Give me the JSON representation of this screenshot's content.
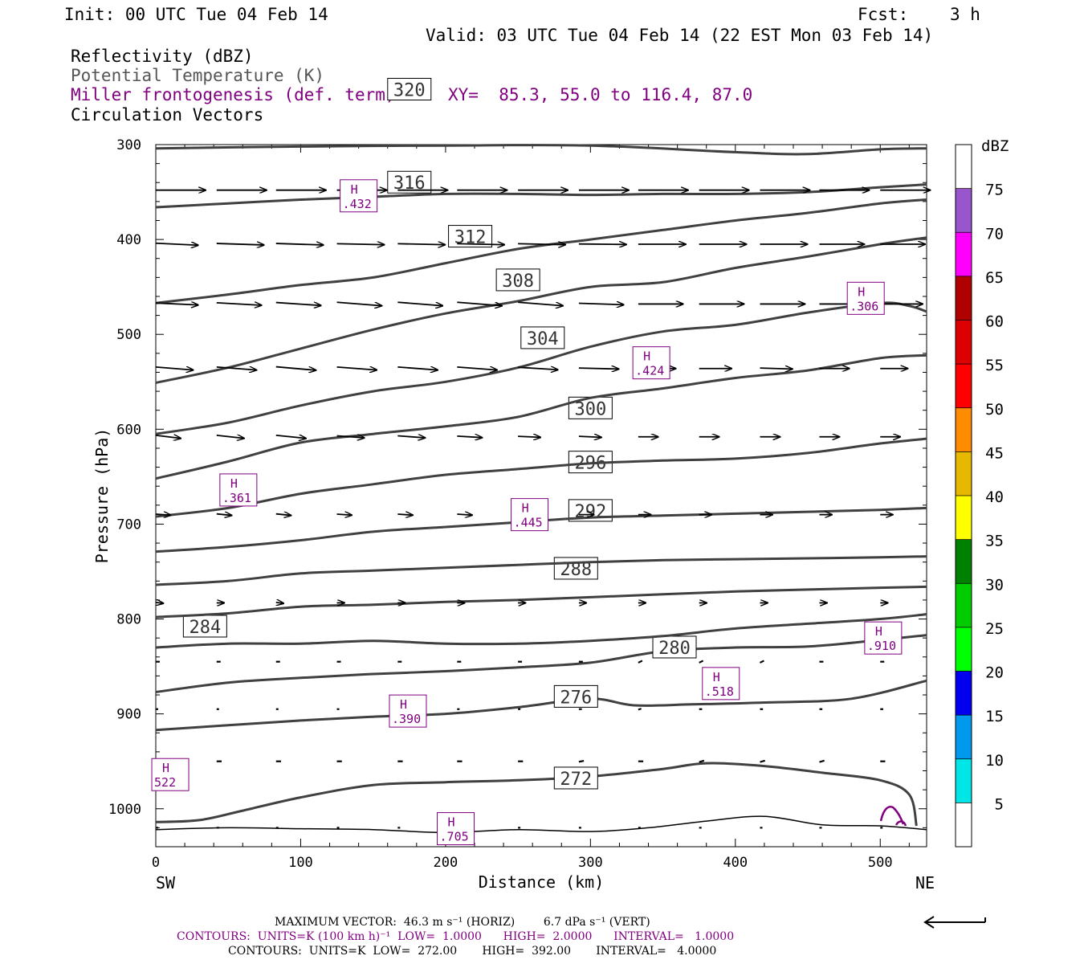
{
  "header": {
    "init": "Init: 00 UTC Tue 04 Feb 14",
    "fcst_label": "Fcst:",
    "fcst_value": "3 h",
    "valid": "Valid: 03 UTC Tue 04 Feb 14 (22 EST Mon 03 Feb 14)"
  },
  "fields": {
    "reflectivity": "Reflectivity (dBZ)",
    "theta": "Potential Temperature (K)",
    "miller": "Miller frontogenesis (def. term)",
    "xy": "XY=  85.3, 55.0 to 116.4, 87.0",
    "vectors": "Circulation Vectors"
  },
  "colors": {
    "purple": "#800080",
    "theta_line": "#404040"
  },
  "footer": {
    "max_vector": "MAXIMUM VECTOR:  46.3 m s⁻¹ (HORIZ)        6.7 dPa s⁻¹ (VERT)",
    "contours1": "CONTOURS:  UNITS=K (100 km h)⁻¹  LOW=  1.0000      HIGH=  2.0000      INTERVAL=   1.0000",
    "contours2": "CONTOURS:  UNITS=K  LOW=  272.00       HIGH=  392.00       INTERVAL=   4.0000"
  },
  "chart_data": {
    "type": "line",
    "xlabel": "Distance (km)",
    "ylabel": "Pressure (hPa)",
    "xlim": [
      0,
      532
    ],
    "ylim": [
      1040,
      300
    ],
    "x_ticks": [
      0,
      100,
      200,
      300,
      400,
      500
    ],
    "y_ticks": [
      300,
      400,
      500,
      600,
      700,
      800,
      900,
      1000
    ],
    "x_end_labels": {
      "left": "SW",
      "right": "NE"
    },
    "colorbar": {
      "unit": "dBZ",
      "levels": [
        5,
        10,
        15,
        20,
        25,
        30,
        35,
        40,
        45,
        50,
        55,
        60,
        65,
        70,
        75
      ],
      "colors": [
        "#ffffff",
        "#00e5e5",
        "#0099ee",
        "#0000ee",
        "#00ff00",
        "#00cc00",
        "#008000",
        "#ffff00",
        "#e6b800",
        "#ff8c00",
        "#ff0000",
        "#dd0000",
        "#b00000",
        "#ff00ff",
        "#9955cc",
        "#ffffff"
      ]
    },
    "theta_contours": [
      {
        "label": "272",
        "label_at": [
          290,
          968
        ],
        "x": [
          0,
          30,
          60,
          100,
          150,
          200,
          250,
          300,
          350,
          380,
          420,
          460,
          500,
          520,
          525
        ],
        "p": [
          1014,
          1012,
          1002,
          988,
          975,
          972,
          970,
          966,
          958,
          952,
          955,
          962,
          970,
          985,
          1018
        ]
      },
      {
        "label": "276",
        "label_at": [
          290,
          882
        ],
        "x": [
          0,
          50,
          100,
          150,
          200,
          250,
          300,
          330,
          370,
          420,
          480,
          532
        ],
        "p": [
          917,
          912,
          907,
          903,
          900,
          893,
          884,
          891,
          890,
          888,
          884,
          865
        ]
      },
      {
        "label": "280",
        "label_at": [
          358,
          830
        ],
        "x": [
          0,
          50,
          100,
          150,
          200,
          250,
          300,
          350,
          400,
          450,
          500,
          532
        ],
        "p": [
          877,
          867,
          862,
          858,
          855,
          851,
          846,
          834,
          830,
          829,
          822,
          817
        ]
      },
      {
        "label": "284",
        "label_at": [
          34,
          808
        ],
        "x": [
          0,
          50,
          100,
          150,
          200,
          250,
          300,
          350,
          400,
          450,
          500,
          532
        ],
        "p": [
          830,
          826,
          826,
          823,
          826,
          826,
          823,
          818,
          810,
          805,
          800,
          795
        ]
      },
      {
        "label": "288",
        "label_at": [
          290,
          747
        ],
        "x": [
          0,
          50,
          100,
          150,
          200,
          250,
          300,
          350,
          400,
          450,
          500,
          532
        ],
        "p": [
          798,
          794,
          787,
          785,
          782,
          780,
          777,
          774,
          771,
          769,
          767,
          766
        ]
      },
      {
        "label": "292",
        "label_at": [
          300,
          686
        ],
        "x": [
          0,
          50,
          100,
          150,
          200,
          250,
          300,
          350,
          400,
          450,
          500,
          532
        ],
        "p": [
          764,
          760,
          752,
          749,
          746,
          743,
          740,
          738,
          737,
          736,
          735,
          734
        ]
      },
      {
        "label": "296",
        "label_at": [
          300,
          635
        ],
        "x": [
          0,
          50,
          100,
          150,
          200,
          250,
          300,
          350,
          400,
          450,
          500,
          532
        ],
        "p": [
          729,
          724,
          717,
          708,
          703,
          698,
          693,
          691,
          689,
          687,
          685,
          683
        ]
      },
      {
        "label": "300",
        "label_at": [
          300,
          578
        ],
        "x": [
          0,
          50,
          100,
          150,
          200,
          250,
          300,
          350,
          400,
          450,
          500,
          532
        ],
        "p": [
          692,
          683,
          668,
          658,
          648,
          642,
          636,
          633,
          631,
          625,
          615,
          610
        ]
      },
      {
        "label": "304",
        "label_at": [
          267,
          504
        ],
        "x": [
          0,
          50,
          100,
          150,
          200,
          250,
          300,
          350,
          400,
          450,
          500,
          532
        ],
        "p": [
          652,
          634,
          614,
          605,
          597,
          587,
          567,
          557,
          546,
          538,
          525,
          522
        ]
      },
      {
        "label": "308",
        "label_at": [
          250,
          443
        ],
        "x": [
          0,
          50,
          100,
          150,
          200,
          250,
          300,
          350,
          400,
          450,
          500,
          520,
          532
        ],
        "p": [
          605,
          593,
          575,
          560,
          550,
          535,
          513,
          497,
          490,
          477,
          467,
          470,
          476
        ]
      },
      {
        "label": "312",
        "label_at": [
          217,
          397
        ],
        "x": [
          0,
          50,
          100,
          150,
          200,
          250,
          300,
          350,
          400,
          450,
          500,
          532
        ],
        "p": [
          551,
          535,
          515,
          495,
          478,
          465,
          450,
          445,
          430,
          418,
          405,
          398
        ]
      },
      {
        "label": "316",
        "label_at": [
          175,
          340
        ],
        "x": [
          0,
          50,
          100,
          150,
          200,
          250,
          300,
          350,
          400,
          450,
          500,
          532
        ],
        "p": [
          467,
          458,
          448,
          440,
          425,
          410,
          400,
          390,
          380,
          372,
          362,
          358
        ]
      },
      {
        "label": "320",
        "label_at": [
          175,
          242
        ],
        "x": [
          0,
          50,
          100,
          150,
          200,
          250,
          300,
          350,
          400,
          450,
          500,
          532
        ],
        "p": [
          366,
          362,
          358,
          355,
          352,
          352,
          353,
          352,
          352,
          350,
          345,
          342
        ]
      },
      {
        "label": "",
        "label_at": null,
        "x": [
          0,
          100,
          200,
          300,
          400,
          450,
          500,
          532
        ],
        "p": [
          304,
          302,
          301,
          301,
          308,
          310,
          305,
          304
        ]
      }
    ],
    "surface_line": {
      "x": [
        0,
        50,
        100,
        150,
        200,
        250,
        300,
        340,
        380,
        420,
        460,
        500,
        532
      ],
      "p": [
        1022,
        1020,
        1021,
        1022,
        1025,
        1022,
        1024,
        1020,
        1013,
        1008,
        1017,
        1018,
        1022
      ]
    },
    "frontogenesis_maxima": [
      {
        "tag": "H",
        "value": ".432",
        "x": 140,
        "p": 354
      },
      {
        "tag": "H",
        "value": ".306",
        "x": 490,
        "p": 462
      },
      {
        "tag": "H",
        "value": ".424",
        "x": 342,
        "p": 530
      },
      {
        "tag": "H",
        "value": ".361",
        "x": 57,
        "p": 664
      },
      {
        "tag": "H",
        "value": ".445",
        "x": 258,
        "p": 690
      },
      {
        "tag": "H",
        "value": ".910",
        "x": 502,
        "p": 820
      },
      {
        "tag": "H",
        "value": ".518",
        "x": 390,
        "p": 868
      },
      {
        "tag": "H",
        "value": ".390",
        "x": 174,
        "p": 897
      },
      {
        "tag": "H",
        "value": "522",
        "x": 10,
        "p": 964
      },
      {
        "tag": "H",
        "value": ".705",
        "x": 207,
        "p": 1021
      }
    ],
    "vector_rows": [
      {
        "p": 348,
        "x": [
          0,
          42,
          83,
          125,
          167,
          208,
          250,
          292,
          333,
          375,
          417,
          458,
          500
        ],
        "u": [
          1.0,
          1.0,
          1.0,
          1.0,
          1.0,
          1.0,
          1.0,
          1.0,
          1.0,
          1.0,
          1.0,
          1.0,
          1.0
        ],
        "w": [
          0,
          0,
          0,
          0,
          0,
          0,
          0,
          0,
          0,
          0,
          0,
          0,
          0
        ]
      },
      {
        "p": 405,
        "x": [
          0,
          42,
          83,
          125,
          167,
          208,
          250,
          292,
          333,
          375,
          417,
          458,
          500
        ],
        "u": [
          0.85,
          0.95,
          0.95,
          0.95,
          0.95,
          0.95,
          0.95,
          0.95,
          0.95,
          0.95,
          0.95,
          0.9,
          0.9
        ],
        "w": [
          0.04,
          0.03,
          0.03,
          0.02,
          0.02,
          0.02,
          0.02,
          0.01,
          0.0,
          0.0,
          0.0,
          0.0,
          0.0
        ]
      },
      {
        "p": 468,
        "x": [
          0,
          42,
          83,
          125,
          167,
          208,
          250,
          292,
          333,
          375,
          417,
          458,
          500
        ],
        "u": [
          0.85,
          0.9,
          0.9,
          0.9,
          0.9,
          0.9,
          0.9,
          0.9,
          0.9,
          0.9,
          0.9,
          0.85,
          0.85
        ],
        "w": [
          0.04,
          0.05,
          0.06,
          0.07,
          0.07,
          0.07,
          0.07,
          0.03,
          0.0,
          0.0,
          0.0,
          0.0,
          0.0
        ]
      },
      {
        "p": 536,
        "x": [
          0,
          42,
          83,
          125,
          167,
          208,
          250,
          292,
          333,
          375,
          417,
          458,
          500
        ],
        "u": [
          0.75,
          0.8,
          0.8,
          0.8,
          0.8,
          0.8,
          0.8,
          0.8,
          0.75,
          0.65,
          0.65,
          0.6,
          0.55
        ],
        "w": [
          0.06,
          0.06,
          0.07,
          0.06,
          0.06,
          0.06,
          0.05,
          0.02,
          0.0,
          0.0,
          0.02,
          0.0,
          0.0
        ]
      },
      {
        "p": 608,
        "x": [
          0,
          42,
          83,
          125,
          167,
          208,
          250,
          292,
          333,
          375,
          417,
          458,
          500
        ],
        "u": [
          0.5,
          0.55,
          0.6,
          0.55,
          0.55,
          0.5,
          0.45,
          0.45,
          0.4,
          0.4,
          0.4,
          0.4,
          0.4
        ],
        "w": [
          0.06,
          0.06,
          0.06,
          0.04,
          0.04,
          0.03,
          0.02,
          0.02,
          0.0,
          0.0,
          0.0,
          0.0,
          0.0
        ]
      },
      {
        "p": 690,
        "x": [
          0,
          42,
          83,
          125,
          167,
          208,
          250,
          292,
          333,
          375,
          417,
          458,
          500
        ],
        "u": [
          0.3,
          0.3,
          0.3,
          0.3,
          0.3,
          0.3,
          0.3,
          0.3,
          0.25,
          0.25,
          0.25,
          0.25,
          0.25
        ],
        "w": [
          0.02,
          0.03,
          0.03,
          0.02,
          0.02,
          0.02,
          0.0,
          0.0,
          0.0,
          0.0,
          0.0,
          0.0,
          0.0
        ]
      },
      {
        "p": 783,
        "x": [
          0,
          42,
          83,
          125,
          167,
          208,
          250,
          292,
          333,
          375,
          417,
          458,
          500
        ],
        "u": [
          0.15,
          0.15,
          0.15,
          0.15,
          0.15,
          0.15,
          0.15,
          0.15,
          0.15,
          0.15,
          0.15,
          0.15,
          0.15
        ],
        "w": [
          0.02,
          0.0,
          0.02,
          0.0,
          0.0,
          0.0,
          0.0,
          0.0,
          0.0,
          0.0,
          0.0,
          0.0,
          0.0
        ]
      },
      {
        "p": 845,
        "x": [
          0,
          42,
          83,
          125,
          167,
          208,
          250,
          292,
          333,
          375,
          417,
          458,
          500
        ],
        "u": [
          0.08,
          0.08,
          0.08,
          0.08,
          0.08,
          0.08,
          0.08,
          0.08,
          0.08,
          0.08,
          0.08,
          0.08,
          0.08
        ],
        "w": [
          0.0,
          0.0,
          0.0,
          0.0,
          0.0,
          0.0,
          0.0,
          0.0,
          -0.04,
          -0.04,
          -0.04,
          0.0,
          0.0
        ]
      },
      {
        "p": 895,
        "x": [
          0,
          42,
          83,
          125,
          167,
          208,
          250,
          292,
          333,
          375,
          417,
          458,
          500
        ],
        "u": [
          0.04,
          0.04,
          0.04,
          0.04,
          0.04,
          0.04,
          0.04,
          0.06,
          0.06,
          0.06,
          0.06,
          0.06,
          0.06
        ],
        "w": [
          0.0,
          0.0,
          0.0,
          0.0,
          0.0,
          0.0,
          0.0,
          0.0,
          -0.02,
          0.0,
          0.0,
          0.0,
          0.0
        ]
      },
      {
        "p": 950,
        "x": [
          0,
          42,
          83,
          125,
          167,
          208,
          250,
          292,
          333,
          375,
          417,
          458,
          500
        ],
        "u": [
          0.1,
          0.1,
          0.1,
          0.1,
          0.1,
          0.1,
          0.1,
          0.1,
          0.1,
          0.1,
          0.1,
          0.1,
          0.1
        ],
        "w": [
          0.0,
          0.0,
          0.0,
          0.0,
          0.0,
          0.0,
          0.0,
          -0.02,
          0.0,
          -0.03,
          -0.03,
          -0.03,
          0.0
        ]
      },
      {
        "p": 1020,
        "x": [
          0,
          42,
          83,
          125,
          167,
          208,
          250,
          292,
          333,
          375,
          417,
          458,
          500
        ],
        "u": [
          0.02,
          0.02,
          0.02,
          0.02,
          0.02,
          0.02,
          0.02,
          0.02,
          0.02,
          0.02,
          0.02,
          0.02,
          0.02
        ],
        "w": [
          0,
          0,
          0,
          0,
          0,
          0,
          0,
          0,
          0,
          0,
          0,
          0,
          0
        ]
      }
    ]
  }
}
